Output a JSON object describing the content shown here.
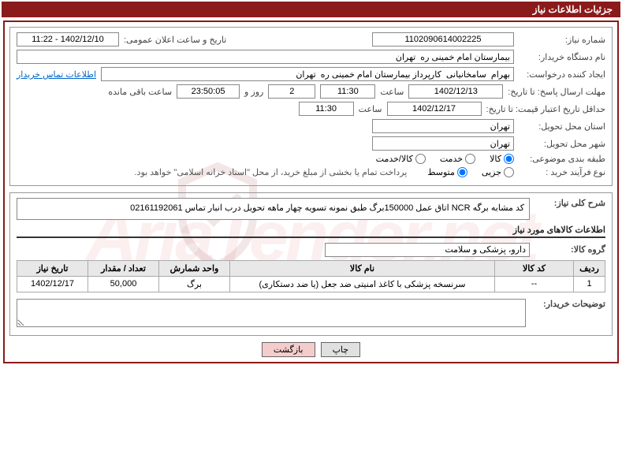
{
  "header": {
    "title": "جزئیات اطلاعات نیاز"
  },
  "watermark_text": "AriaTender.net",
  "fields": {
    "need_no_label": "شماره نیاز:",
    "need_no": "1102090614002225",
    "announce_label": "تاریخ و ساعت اعلان عمومی:",
    "announce": "1402/12/10 - 11:22",
    "buyer_label": "نام دستگاه خریدار:",
    "buyer": "بیمارستان امام خمینی ره  تهران",
    "requester_label": "ایجاد کننده درخواست:",
    "requester": "بهرام  سامخانیانی  کارپرداز بیمارستان امام خمینی ره  تهران",
    "contact_link": "اطلاعات تماس خریدار",
    "reply_deadline_label": "مهلت ارسال پاسخ: تا تاریخ:",
    "reply_date": "1402/12/13",
    "time_label": "ساعت",
    "reply_time": "11:30",
    "days": "2",
    "days_label": "روز و",
    "countdown": "23:50:05",
    "remaining_label": "ساعت باقی مانده",
    "price_valid_label": "حداقل تاریخ اعتبار قیمت: تا تاریخ:",
    "price_valid_date": "1402/12/17",
    "price_valid_time": "11:30",
    "province_label": "استان محل تحویل:",
    "province": "تهران",
    "city_label": "شهر محل تحویل:",
    "city": "تهران",
    "category_label": "طبقه بندی موضوعی:",
    "cat_goods": "کالا",
    "cat_service": "خدمت",
    "cat_goods_service": "کالا/خدمت",
    "process_label": "نوع فرآیند خرید :",
    "proc_small": "جزیی",
    "proc_medium": "متوسط",
    "proc_note": "پرداخت تمام یا بخشی از مبلغ خرید، از محل \"اسناد خزانه اسلامی\" خواهد بود.",
    "desc_label": "شرح کلی نیاز:",
    "desc": "کد مشابه برگه NCR اتاق عمل 150000برگ طبق نمونه تسویه چهار ماهه تحویل درب انبار تماس 02161192061",
    "goods_section": "اطلاعات کالاهای مورد نیاز",
    "group_label": "گروه کالا:",
    "group": "دارو، پزشکی و سلامت",
    "buyer_notes_label": "توضیحات خریدار:",
    "buyer_notes": ""
  },
  "table": {
    "headers": {
      "row": "ردیف",
      "code": "کد کالا",
      "name": "نام کالا",
      "unit": "واحد شمارش",
      "qty": "تعداد / مقدار",
      "date": "تاریخ نیاز"
    },
    "rows": [
      {
        "row": "1",
        "code": "--",
        "name": "سرنسخه پزشکی با کاغذ امنیتی ضد جعل (یا ضد دستکاری)",
        "unit": "برگ",
        "qty": "50,000",
        "date": "1402/12/17"
      }
    ]
  },
  "buttons": {
    "print": "چاپ",
    "back": "بازگشت"
  }
}
